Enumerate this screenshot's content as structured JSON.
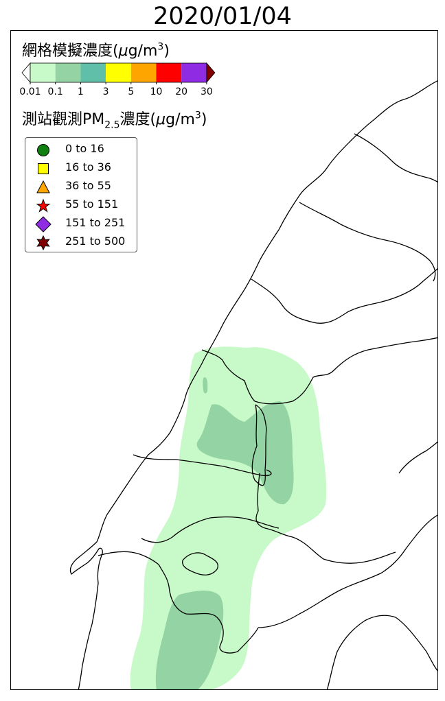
{
  "title": "2020/01/04",
  "colorbar": {
    "title_main": "網格模擬濃度(",
    "title_unit_mu": "μ",
    "title_unit_rest": "g/m",
    "title_sup": "3",
    "title_close": ")",
    "ticks": [
      "0.01",
      "0.1",
      "1",
      "3",
      "5",
      "10",
      "20",
      "30"
    ],
    "colors": [
      "#c8f9c8",
      "#94d4a4",
      "#5fbfa8",
      "#ffff00",
      "#ffa500",
      "#ff0000",
      "#8f2be2"
    ],
    "under_color": "#ffffff",
    "over_color": "#800000"
  },
  "stations": {
    "title_main": "測站觀測PM",
    "title_sub": "2.5",
    "title_mid": "濃度(",
    "title_unit_mu": "μ",
    "title_unit_rest": "g/m",
    "title_sup": "3",
    "title_close": ")",
    "legend": [
      {
        "label": "0 to 16",
        "marker": "circle-marker",
        "color": "#108010"
      },
      {
        "label": "16 to 36",
        "marker": "square-marker",
        "color": "#ffff00"
      },
      {
        "label": "36 to 55",
        "marker": "triangle-marker",
        "color": "#ffa500"
      },
      {
        "label": "55 to 151",
        "marker": "star-marker",
        "color": "#ff0000"
      },
      {
        "label": "151 to 251",
        "marker": "diamond-marker",
        "color": "#8f2be2"
      },
      {
        "label": "251 to 500",
        "marker": "hexstar-marker",
        "color": "#800000"
      }
    ]
  }
}
